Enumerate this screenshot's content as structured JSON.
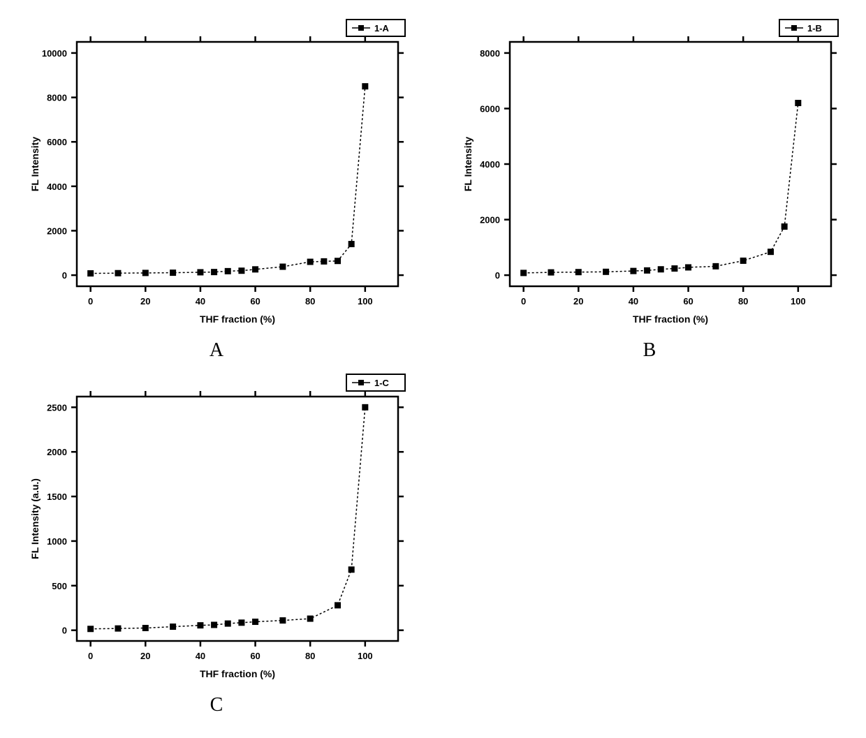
{
  "global": {
    "background_color": "#ffffff",
    "axis_color": "#000000",
    "axis_line_width": 2.5,
    "tick_line_width": 2.5,
    "tick_length": 8,
    "data_line_color": "#000000",
    "data_line_width": 1.5,
    "data_line_dash": "3,3",
    "marker_fill": "#000000",
    "marker_stroke": "#000000",
    "marker_size": 8,
    "marker_style": "square",
    "panel_label_fontsize": 28,
    "axis_label_fontsize": 14,
    "axis_label_fontweight": "bold",
    "tick_label_fontsize": 13,
    "tick_label_fontweight": "bold",
    "legend_fontsize": 13,
    "legend_fontweight": "bold",
    "legend_border_color": "#000000",
    "legend_border_width": 2
  },
  "panels": {
    "A": {
      "panel_label": "A",
      "legend_label": "1-A",
      "xlabel": "THF fraction (%)",
      "ylabel": "FL Intensity",
      "xlim": [
        -5,
        112
      ],
      "ylim": [
        -500,
        10500
      ],
      "xticks": [
        0,
        20,
        40,
        60,
        80,
        100
      ],
      "yticks": [
        0,
        2000,
        4000,
        6000,
        8000,
        10000
      ],
      "x": [
        0,
        10,
        20,
        30,
        40,
        45,
        50,
        55,
        60,
        70,
        80,
        85,
        90,
        95,
        100
      ],
      "y": [
        80,
        90,
        100,
        110,
        130,
        140,
        180,
        200,
        260,
        380,
        600,
        620,
        640,
        1400,
        8500
      ]
    },
    "B": {
      "panel_label": "B",
      "legend_label": "1-B",
      "xlabel": "THF fraction (%)",
      "ylabel": "FL Intensity",
      "xlim": [
        -5,
        112
      ],
      "ylim": [
        -400,
        8400
      ],
      "xticks": [
        0,
        20,
        40,
        60,
        80,
        100
      ],
      "yticks": [
        0,
        2000,
        4000,
        6000,
        8000
      ],
      "x": [
        0,
        10,
        20,
        30,
        40,
        45,
        50,
        55,
        60,
        70,
        80,
        90,
        95,
        100
      ],
      "y": [
        80,
        100,
        110,
        120,
        150,
        170,
        210,
        240,
        280,
        320,
        520,
        840,
        1750,
        6200
      ]
    },
    "C": {
      "panel_label": "C",
      "legend_label": "1-C",
      "xlabel": "THF fraction (%)",
      "ylabel": "FL Intensity (a.u.)",
      "xlim": [
        -5,
        112
      ],
      "ylim": [
        -120,
        2620
      ],
      "xticks": [
        0,
        20,
        40,
        60,
        80,
        100
      ],
      "yticks": [
        0,
        500,
        1000,
        1500,
        2000,
        2500
      ],
      "x": [
        0,
        10,
        20,
        30,
        40,
        45,
        50,
        55,
        60,
        70,
        80,
        90,
        95,
        100
      ],
      "y": [
        15,
        20,
        25,
        40,
        55,
        60,
        75,
        85,
        95,
        110,
        130,
        280,
        680,
        2500
      ]
    }
  }
}
